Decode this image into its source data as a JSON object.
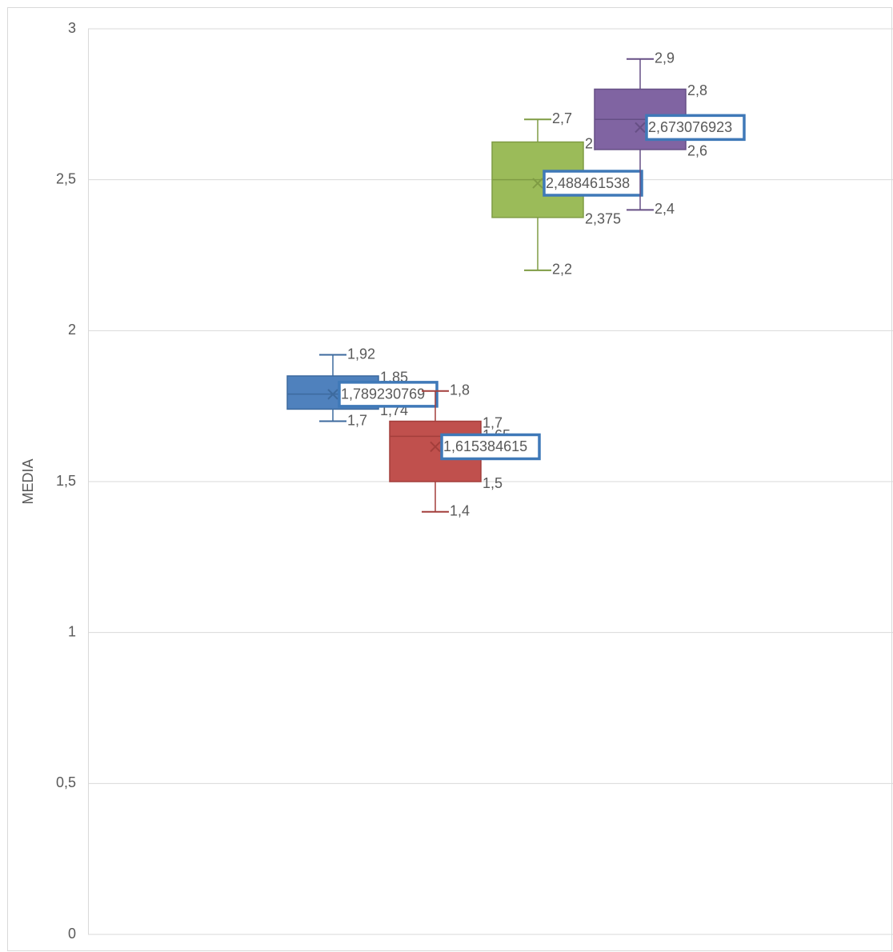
{
  "chart_data": {
    "type": "box",
    "y_label": "MEDIA",
    "ylim": [
      0,
      3
    ],
    "yticks": [
      0,
      {
        "value": 0.5,
        "label": "0,5"
      },
      1,
      {
        "value": 1.5,
        "label": "1,5"
      },
      2,
      {
        "value": 2.5,
        "label": "2,5"
      },
      3
    ],
    "grid": true,
    "series": [
      {
        "color": "#4f81bd",
        "line": "#3d6a9e",
        "min": 1.7,
        "q1": 1.74,
        "median": 1.79,
        "q3": 1.85,
        "max": 1.92,
        "mean": 1.789230769,
        "labels": {
          "min": "1,7",
          "q1": "1,74",
          "q3": "1,85",
          "max": "1,92",
          "mean": "1,789230769"
        }
      },
      {
        "color": "#c0504d",
        "line": "#a33e3b",
        "min": 1.4,
        "q1": 1.5,
        "median": 1.65,
        "q3": 1.7,
        "max": 1.8,
        "mean": 1.615384615,
        "labels": {
          "min": "1,4",
          "q1": "1,5",
          "median": "1,65",
          "q3": "1,7",
          "max": "1,8",
          "mean": "1,615384615"
        }
      },
      {
        "color": "#9bbb59",
        "line": "#7f9c44",
        "min": 2.2,
        "q1": 2.375,
        "median": 2.5,
        "q3": 2.625,
        "max": 2.7,
        "mean": 2.488461538,
        "labels": {
          "min": "2,2",
          "q1": "2,375",
          "q3": "2,625",
          "max": "2,7",
          "mean": "2,488461538"
        }
      },
      {
        "color": "#8064a2",
        "line": "#664f85",
        "min": 2.4,
        "q1": 2.6,
        "median": 2.7,
        "q3": 2.8,
        "max": 2.9,
        "mean": 2.673076923,
        "labels": {
          "min": "2,4",
          "q1": "2,6",
          "q3": "2,8",
          "max": "2,9",
          "mean": "2,673076923"
        }
      }
    ]
  }
}
